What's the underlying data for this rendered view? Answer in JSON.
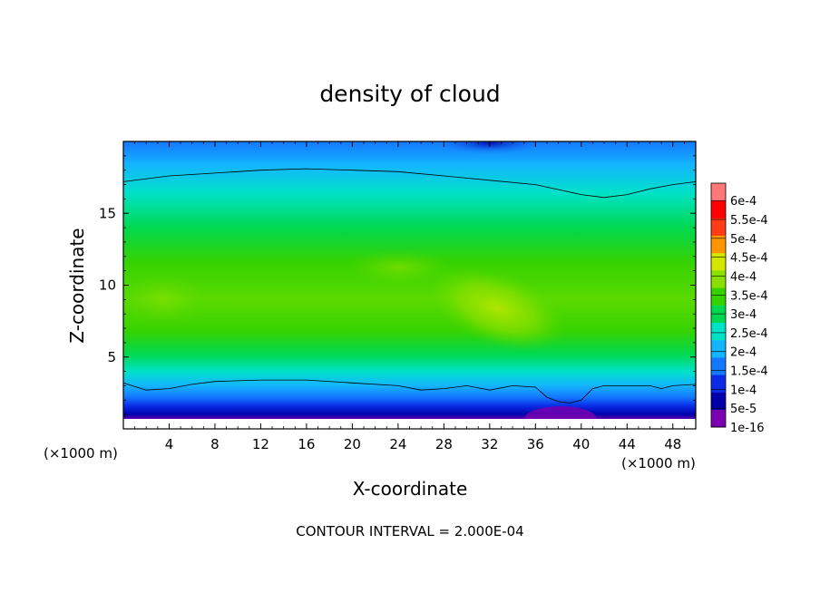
{
  "chart_data": {
    "type": "heatmap",
    "title": "density of cloud",
    "xlabel": "X-coordinate",
    "ylabel": "Z-coordinate",
    "x_unit_left": "(×1000 m)",
    "x_unit_right": "(×1000 m)",
    "footer": "CONTOUR INTERVAL = 2.000E-04",
    "xlim": [
      0,
      50
    ],
    "ylim": [
      0,
      20
    ],
    "x_ticks": [
      4,
      8,
      12,
      16,
      20,
      24,
      28,
      32,
      36,
      40,
      44,
      48
    ],
    "x_tick_labels": [
      "4",
      "8",
      "12",
      "16",
      "20",
      "24",
      "28",
      "32",
      "36",
      "40",
      "44",
      "48"
    ],
    "y_ticks": [
      5,
      10,
      15
    ],
    "y_tick_labels": [
      "5",
      "10",
      "15"
    ],
    "colorbar": {
      "levels": [
        1e-16,
        5e-05,
        0.0001,
        0.00015,
        0.0002,
        0.00025,
        0.0003,
        0.00035,
        0.0004,
        0.00045,
        0.0005,
        0.00055,
        0.0006
      ],
      "labels": [
        "1e-16",
        "5e-5",
        "1e-4",
        "1.5e-4",
        "2e-4",
        "2.5e-4",
        "3e-4",
        "3.5e-4",
        "4e-4",
        "4.5e-4",
        "5e-4",
        "5.5e-4",
        "6e-4"
      ],
      "colors": [
        "#7a00b0",
        "#0000aa",
        "#0a2ce6",
        "#1478ff",
        "#14b4ff",
        "#00e2c8",
        "#00d850",
        "#36d200",
        "#8ae000",
        "#d2e600",
        "#ff9600",
        "#ff3c14",
        "#ff0000",
        "#ff7878"
      ]
    },
    "contour_2e-4": {
      "upper": [
        [
          0,
          17.2
        ],
        [
          4,
          17.6
        ],
        [
          8,
          17.8
        ],
        [
          12,
          18.0
        ],
        [
          16,
          18.1
        ],
        [
          20,
          18.0
        ],
        [
          24,
          17.9
        ],
        [
          28,
          17.6
        ],
        [
          32,
          17.3
        ],
        [
          36,
          17.0
        ],
        [
          40,
          16.3
        ],
        [
          42,
          16.1
        ],
        [
          44,
          16.3
        ],
        [
          46,
          16.7
        ],
        [
          48,
          17.0
        ],
        [
          50,
          17.2
        ]
      ],
      "lower": [
        [
          0,
          3.2
        ],
        [
          2,
          2.7
        ],
        [
          4,
          2.8
        ],
        [
          6,
          3.1
        ],
        [
          8,
          3.3
        ],
        [
          12,
          3.4
        ],
        [
          16,
          3.4
        ],
        [
          20,
          3.2
        ],
        [
          24,
          3.0
        ],
        [
          26,
          2.7
        ],
        [
          28,
          2.8
        ],
        [
          30,
          3.0
        ],
        [
          32,
          2.7
        ],
        [
          34,
          3.0
        ],
        [
          36,
          2.9
        ],
        [
          37,
          2.2
        ],
        [
          38,
          1.9
        ],
        [
          39,
          1.8
        ],
        [
          40,
          2.0
        ],
        [
          41,
          2.8
        ],
        [
          42,
          3.0
        ],
        [
          44,
          3.0
        ],
        [
          46,
          3.0
        ],
        [
          47,
          2.8
        ],
        [
          48,
          3.0
        ],
        [
          50,
          3.1
        ]
      ]
    },
    "field_peak": {
      "x": 33,
      "z": 8,
      "value": 0.00042
    }
  }
}
